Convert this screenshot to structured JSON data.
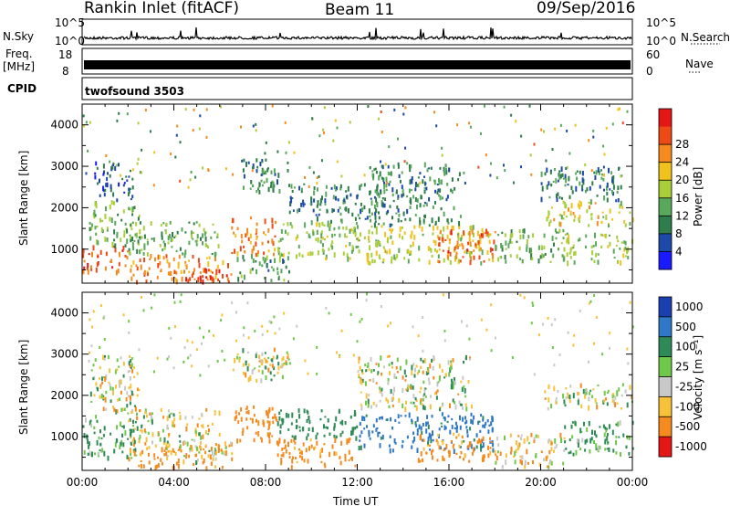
{
  "header": {
    "station": "Rankin Inlet (fitACF)",
    "beam": "Beam 11",
    "date": "09/Sep/2016"
  },
  "params": {
    "nsky_label": "N.Sky",
    "nsearch_label": "N.Search",
    "nsky_ticks": [
      "10^5",
      "10^0"
    ],
    "freq_label": "Freq.",
    "freq_unit": "[MHz]",
    "freq_ticks": [
      "18",
      "8"
    ],
    "nave_label": "Nave",
    "nave_ticks": [
      "60",
      "0"
    ],
    "cpid_label": "CPID",
    "cpid_value": "twofsound 3503"
  },
  "chart_data": [
    {
      "type": "heatmap",
      "title": "",
      "xlabel": "",
      "ylabel": "Slant Range [km]",
      "x_ticks": [
        "00:00",
        "04:00",
        "08:00",
        "12:00",
        "16:00",
        "20:00",
        "00:00"
      ],
      "y_ticks": [
        1000,
        2000,
        3000,
        4000
      ],
      "xlim_hours": [
        0,
        24
      ],
      "ylim_km": [
        180,
        4500
      ],
      "colorbar": {
        "label": "Power [dB]",
        "ticks": [
          4,
          8,
          12,
          16,
          20,
          24,
          28
        ],
        "range": [
          0,
          30
        ],
        "colors": [
          "#1a1aff",
          "#1d4aa8",
          "#2f7d4a",
          "#5aa85c",
          "#a8cf3a",
          "#f0c21d",
          "#f58a1f",
          "#ee4a16",
          "#e51616"
        ]
      },
      "regions": [
        {
          "h0": 0.0,
          "h1": 2.0,
          "r0": 500,
          "r1": 1100,
          "value": 24
        },
        {
          "h0": 0.3,
          "h1": 2.5,
          "r0": 1100,
          "r1": 2200,
          "value": 12
        },
        {
          "h0": 0.5,
          "h1": 2.2,
          "r0": 2200,
          "r1": 3200,
          "value": 6
        },
        {
          "h0": 2.0,
          "h1": 6.5,
          "r0": 250,
          "r1": 900,
          "value": 22
        },
        {
          "h0": 4.5,
          "h1": 6.5,
          "r0": 250,
          "r1": 550,
          "value": 28
        },
        {
          "h0": 2.0,
          "h1": 6.0,
          "r0": 900,
          "r1": 1700,
          "value": 12
        },
        {
          "h0": 6.5,
          "h1": 8.5,
          "r0": 900,
          "r1": 1800,
          "value": 22
        },
        {
          "h0": 6.5,
          "h1": 9.0,
          "r0": 250,
          "r1": 900,
          "value": 10
        },
        {
          "h0": 7.0,
          "h1": 9.0,
          "r0": 2400,
          "r1": 3200,
          "value": 9
        },
        {
          "h0": 8.5,
          "h1": 12.0,
          "r0": 800,
          "r1": 1700,
          "value": 14
        },
        {
          "h0": 9.0,
          "h1": 13.0,
          "r0": 1700,
          "r1": 2600,
          "value": 8
        },
        {
          "h0": 12.0,
          "h1": 18.0,
          "r0": 700,
          "r1": 1600,
          "value": 16
        },
        {
          "h0": 15.5,
          "h1": 18.0,
          "r0": 700,
          "r1": 1500,
          "value": 24
        },
        {
          "h0": 12.5,
          "h1": 16.5,
          "r0": 1600,
          "r1": 3100,
          "value": 9
        },
        {
          "h0": 18.0,
          "h1": 21.0,
          "r0": 700,
          "r1": 1500,
          "value": 12
        },
        {
          "h0": 20.0,
          "h1": 24.0,
          "r0": 1600,
          "r1": 2200,
          "value": 17
        },
        {
          "h0": 21.0,
          "h1": 24.0,
          "r0": 700,
          "r1": 1400,
          "value": 14
        },
        {
          "h0": 20.0,
          "h1": 23.5,
          "r0": 2200,
          "r1": 3000,
          "value": 8
        }
      ]
    },
    {
      "type": "heatmap",
      "title": "",
      "xlabel": "Time UT",
      "ylabel": "Slant Range [km]",
      "x_ticks": [
        "00:00",
        "04:00",
        "08:00",
        "12:00",
        "16:00",
        "20:00",
        "00:00"
      ],
      "y_ticks": [
        1000,
        2000,
        3000,
        4000
      ],
      "xlim_hours": [
        0,
        24
      ],
      "ylim_km": [
        180,
        4500
      ],
      "colorbar": {
        "label": "Velocity [m s⁻¹]",
        "ticks": [
          1000,
          500,
          100,
          25,
          -25,
          -100,
          -500,
          -1000
        ],
        "colors": [
          "#1a3faf",
          "#2f78c8",
          "#2e8b57",
          "#6fc84a",
          "#c8c8c8",
          "#f7c23a",
          "#f58a1f",
          "#e51616"
        ]
      },
      "regions": [
        {
          "h0": 0.0,
          "h1": 2.5,
          "r0": 500,
          "r1": 1600,
          "value": 150
        },
        {
          "h0": 0.3,
          "h1": 2.5,
          "r0": 1600,
          "r1": 3000,
          "value": 0
        },
        {
          "h0": 2.0,
          "h1": 6.5,
          "r0": 250,
          "r1": 900,
          "value": -200
        },
        {
          "h0": 3.5,
          "h1": 6.5,
          "r0": 400,
          "r1": 900,
          "value": 0
        },
        {
          "h0": 2.0,
          "h1": 6.0,
          "r0": 900,
          "r1": 1700,
          "value": 0
        },
        {
          "h0": 6.5,
          "h1": 8.5,
          "r0": 900,
          "r1": 1800,
          "value": -300
        },
        {
          "h0": 6.5,
          "h1": 9.0,
          "r0": 2400,
          "r1": 3200,
          "value": 0
        },
        {
          "h0": 8.5,
          "h1": 12.0,
          "r0": 300,
          "r1": 1000,
          "value": -200
        },
        {
          "h0": 8.5,
          "h1": 12.0,
          "r0": 1000,
          "r1": 1700,
          "value": 300
        },
        {
          "h0": 12.0,
          "h1": 18.0,
          "r0": 700,
          "r1": 1600,
          "value": 600
        },
        {
          "h0": 14.5,
          "h1": 18.0,
          "r0": 400,
          "r1": 1100,
          "value": -200
        },
        {
          "h0": 12.0,
          "h1": 17.0,
          "r0": 1700,
          "r1": 3000,
          "value": 0
        },
        {
          "h0": 18.0,
          "h1": 21.0,
          "r0": 300,
          "r1": 1100,
          "value": -60
        },
        {
          "h0": 20.0,
          "h1": 24.0,
          "r0": 1700,
          "r1": 2300,
          "value": 0
        },
        {
          "h0": 21.0,
          "h1": 24.0,
          "r0": 600,
          "r1": 1400,
          "value": 150
        }
      ]
    }
  ]
}
